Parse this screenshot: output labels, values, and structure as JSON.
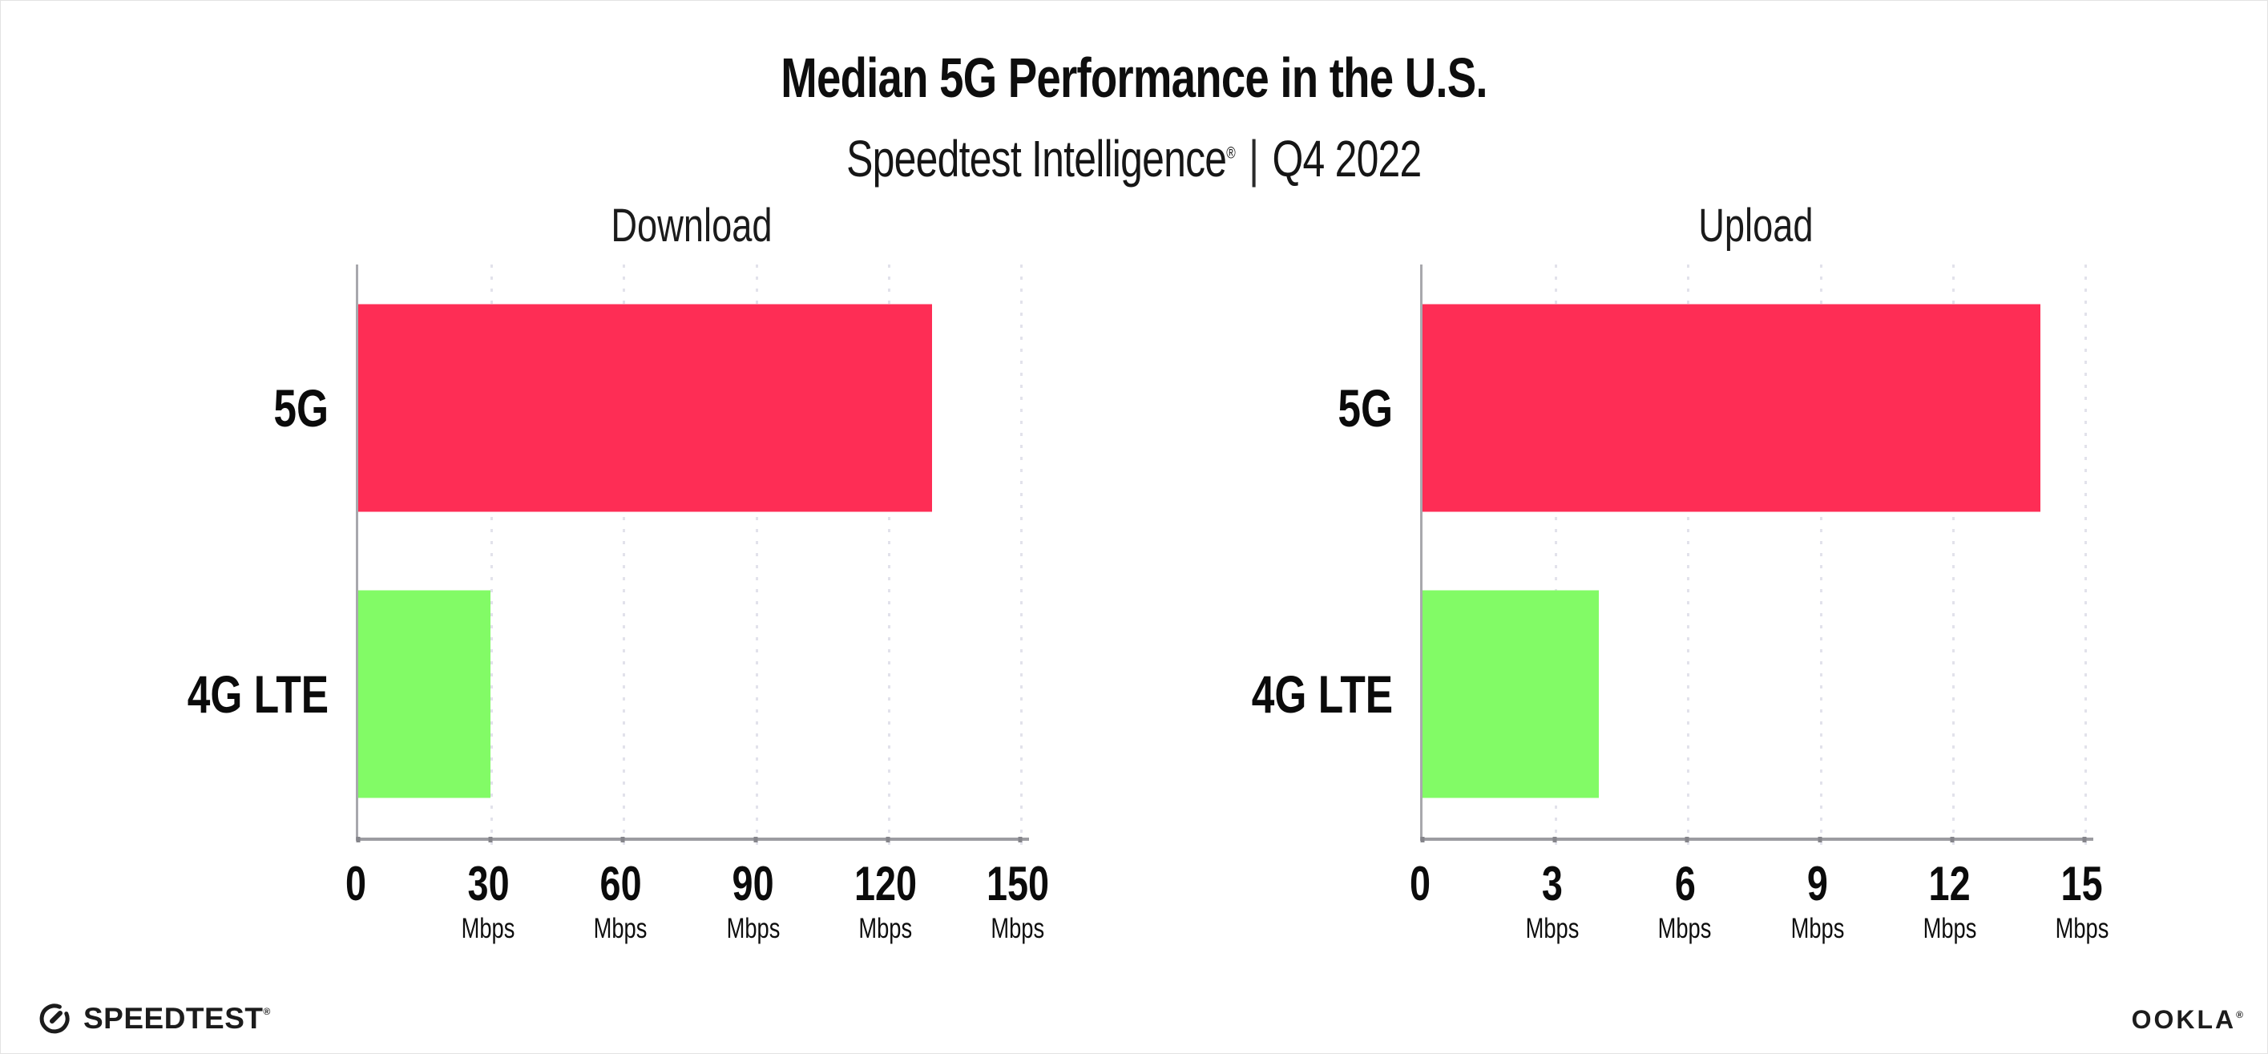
{
  "header": {
    "title": "Median 5G Performance in the U.S.",
    "subtitle_brand": "Speedtest Intelligence",
    "subtitle_reg": "®",
    "subtitle_separator": "|",
    "subtitle_period": "Q4 2022"
  },
  "footer": {
    "speedtest_logo_text": "SPEEDTEST",
    "speedtest_reg": "®",
    "speedtest_gauge_icon": "gauge-icon",
    "ookla_logo_text": "OOKLA",
    "ookla_reg": "®"
  },
  "colors": {
    "bar_5g": "#fe2d55",
    "bar_4g_lte": "#82fb66",
    "text": "#0e0e0e",
    "gridline": "#e2e2eb",
    "axis": "#9c9ca1",
    "background": "#ffffff"
  },
  "chart_data": [
    {
      "type": "bar",
      "orientation": "horizontal",
      "title": "Download",
      "categories": [
        "5G",
        "4G LTE"
      ],
      "values": [
        130,
        30
      ],
      "unit": "Mbps",
      "xlabel": "",
      "ylabel": "",
      "xlim": [
        0,
        152
      ],
      "xticks": [
        0,
        30,
        60,
        90,
        120,
        150
      ],
      "grid": "vertical-dotted",
      "legend": "none"
    },
    {
      "type": "bar",
      "orientation": "horizontal",
      "title": "Upload",
      "categories": [
        "5G",
        "4G LTE"
      ],
      "values": [
        14,
        4
      ],
      "unit": "Mbps",
      "xlabel": "",
      "ylabel": "",
      "xlim": [
        0,
        15.2
      ],
      "xticks": [
        0,
        3,
        6,
        9,
        12,
        15
      ],
      "grid": "vertical-dotted",
      "legend": "none"
    }
  ]
}
